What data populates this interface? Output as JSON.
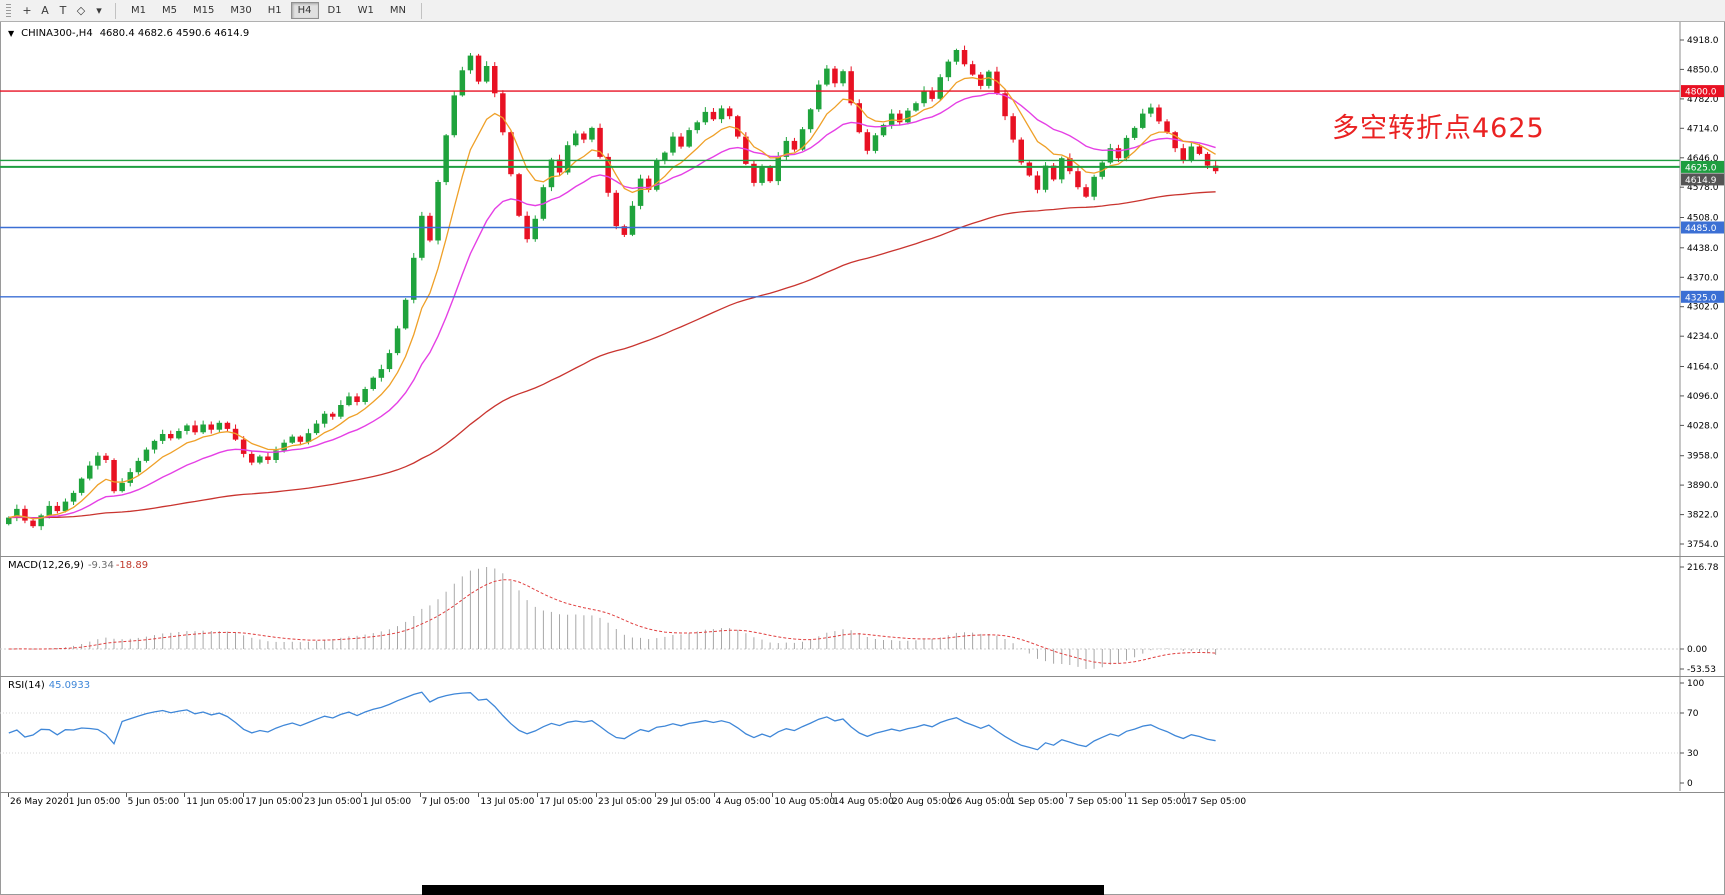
{
  "toolbar": {
    "tools": [
      {
        "name": "crosshair-icon",
        "glyph": "+"
      },
      {
        "name": "text-tool-icon",
        "glyph": "A"
      },
      {
        "name": "textbox-tool-icon",
        "glyph": "T"
      },
      {
        "name": "shapes-tool-icon",
        "glyph": "◇"
      },
      {
        "name": "dropdown-caret-icon",
        "glyph": "▾"
      }
    ],
    "timeframes": [
      {
        "label": "M1",
        "active": false
      },
      {
        "label": "M5",
        "active": false
      },
      {
        "label": "M15",
        "active": false
      },
      {
        "label": "M30",
        "active": false
      },
      {
        "label": "H1",
        "active": false
      },
      {
        "label": "H4",
        "active": true
      },
      {
        "label": "D1",
        "active": false
      },
      {
        "label": "W1",
        "active": false
      },
      {
        "label": "MN",
        "active": false
      }
    ]
  },
  "chart": {
    "title": "CHINA300-,H4",
    "ohlc": "4680.4 4682.6 4590.6 4614.9",
    "annotation_text": "多空转折点4625",
    "current_price_label": "4614.9",
    "price_axis": [
      "4918.0",
      "4850.0",
      "4782.0",
      "4714.0",
      "4646.0",
      "4578.0",
      "4508.0",
      "4438.0",
      "4370.0",
      "4302.0",
      "4234.0",
      "4164.0",
      "4096.0",
      "4028.0",
      "3958.0",
      "3890.0",
      "3822.0",
      "3754.0"
    ],
    "time_axis": [
      "26 May 2020",
      "1 Jun 05:00",
      "5 Jun 05:00",
      "11 Jun 05:00",
      "17 Jun 05:00",
      "23 Jun 05:00",
      "1 Jul 05:00",
      "7 Jul 05:00",
      "13 Jul 05:00",
      "17 Jul 05:00",
      "23 Jul 05:00",
      "29 Jul 05:00",
      "4 Aug 05:00",
      "10 Aug 05:00",
      "14 Aug 05:00",
      "20 Aug 05:00",
      "26 Aug 05:00",
      "1 Sep 05:00",
      "7 Sep 05:00",
      "11 Sep 05:00",
      "17 Sep 05:00"
    ]
  },
  "chart_data": {
    "type": "candlestick",
    "symbol": "CHINA300-",
    "period": "H4",
    "ylim": [
      3754,
      4918
    ],
    "closes": [
      3815,
      3835,
      3808,
      3795,
      3820,
      3842,
      3830,
      3852,
      3872,
      3905,
      3935,
      3958,
      3948,
      3876,
      3895,
      3920,
      3946,
      3972,
      3992,
      4008,
      3998,
      4015,
      4028,
      4012,
      4030,
      4018,
      4034,
      4020,
      3995,
      3962,
      3942,
      3956,
      3948,
      3970,
      3988,
      4002,
      3990,
      4010,
      4032,
      4055,
      4048,
      4075,
      4095,
      4082,
      4112,
      4138,
      4158,
      4195,
      4252,
      4318,
      4415,
      4512,
      4455,
      4590,
      4698,
      4790,
      4848,
      4882,
      4822,
      4858,
      4795,
      4705,
      4608,
      4512,
      4458,
      4505,
      4578,
      4642,
      4612,
      4675,
      4702,
      4688,
      4715,
      4648,
      4565,
      4488,
      4468,
      4535,
      4598,
      4572,
      4640,
      4658,
      4695,
      4672,
      4710,
      4728,
      4752,
      4735,
      4760,
      4742,
      4695,
      4632,
      4588,
      4625,
      4592,
      4648,
      4685,
      4665,
      4712,
      4758,
      4815,
      4852,
      4818,
      4846,
      4772,
      4705,
      4662,
      4698,
      4722,
      4748,
      4728,
      4755,
      4772,
      4800,
      4782,
      4832,
      4868,
      4895,
      4862,
      4838,
      4812,
      4845,
      4795,
      4742,
      4688,
      4635,
      4605,
      4572,
      4628,
      4596,
      4645,
      4615,
      4578,
      4556,
      4602,
      4635,
      4668,
      4645,
      4692,
      4715,
      4748,
      4762,
      4730,
      4705,
      4668,
      4640,
      4672,
      4655,
      4628,
      4615
    ],
    "levels": [
      {
        "price": 4800,
        "color": "#e81123",
        "label": "4800.0",
        "width": 1.4
      },
      {
        "price": 4640,
        "color": "#1e9e40",
        "label": "",
        "width": 1.4
      },
      {
        "price": 4625,
        "color": "#1e9e40",
        "label": "4625.0",
        "width": 2
      },
      {
        "price": 4485,
        "color": "#3b6fd4",
        "label": "4485.0",
        "width": 1.4
      },
      {
        "price": 4325,
        "color": "#3b6fd4",
        "label": "4325.0",
        "width": 1.4
      }
    ],
    "colors": {
      "up": "#1fa33c",
      "down": "#e81123",
      "ma_fast": "#efa028",
      "ma_mid": "#e540e5",
      "ma_slow": "#c9342f",
      "macd_hist": "#a8a8a8",
      "macd_signal": "#e04040",
      "rsi": "#3f87d8"
    },
    "ma_periods": {
      "fast": 8,
      "mid": 20,
      "slow": 110
    },
    "macd": {
      "label": "MACD(12,26,9)",
      "main_value": "-9.34",
      "signal_value": "-18.89",
      "axis": [
        "216.78",
        "0.00",
        "-53.53"
      ],
      "params": [
        12,
        26,
        9
      ]
    },
    "rsi": {
      "label": "RSI(14)",
      "value": "45.0933",
      "axis": [
        "100",
        "70",
        "30",
        "0"
      ],
      "period": 14,
      "levels": [
        70,
        30
      ]
    }
  }
}
